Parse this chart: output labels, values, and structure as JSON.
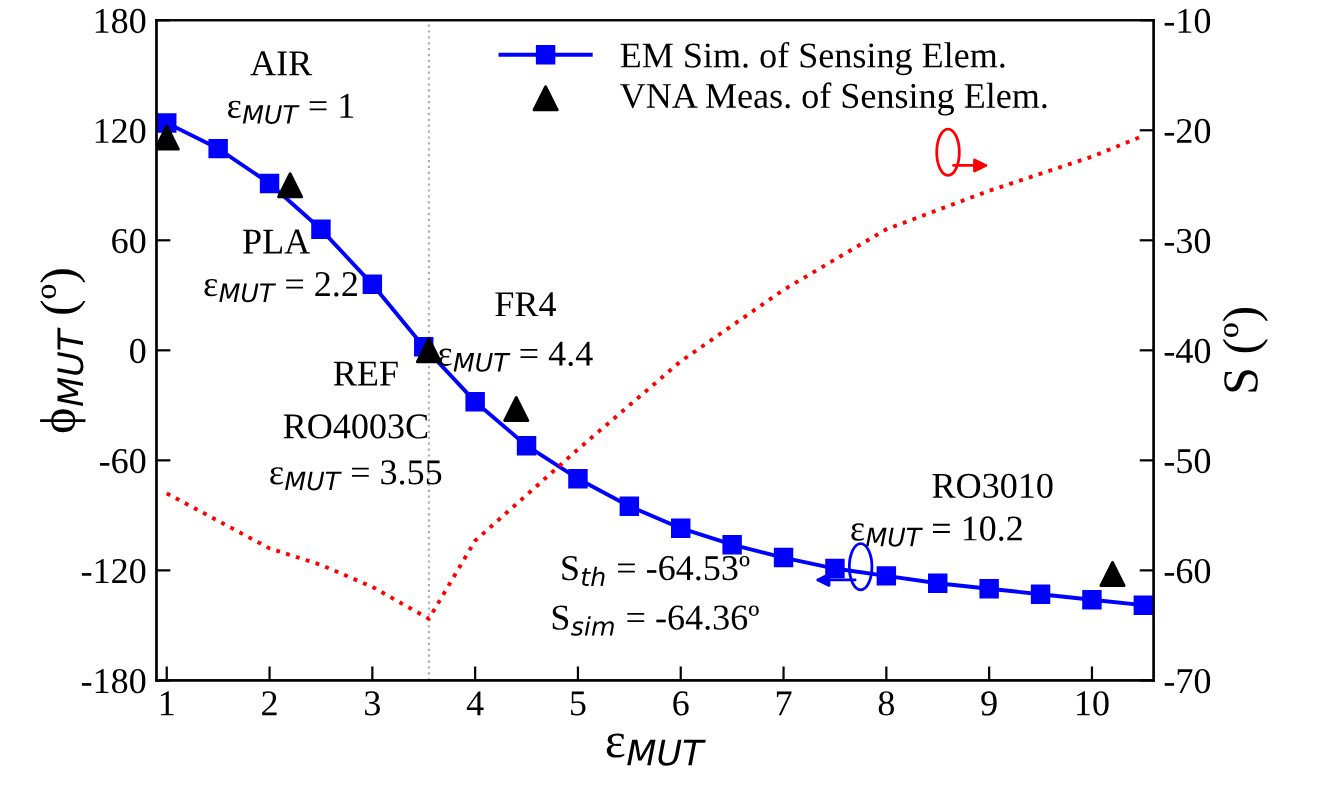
{
  "chart_data": {
    "type": "line",
    "xlabel": "ε$_{MUT}$",
    "ylabel": "ϕ$_{MUT}$ (º)",
    "y2label": "S (º)",
    "xlim": [
      0.9,
      10.6
    ],
    "xticks": [
      1,
      2,
      3,
      4,
      5,
      6,
      7,
      8,
      9,
      10
    ],
    "ylim": [
      -180,
      180
    ],
    "yticks": [
      -180,
      -120,
      -60,
      0,
      60,
      120,
      180
    ],
    "y2lim": [
      -70,
      -10
    ],
    "y2ticks": [
      -70,
      -60,
      -50,
      -40,
      -30,
      -20,
      -10
    ],
    "legend": "top",
    "grid": false,
    "series": [
      {
        "name": "EM Sim. of Sensing Elem.",
        "type": "line",
        "marker": "square",
        "line_style": "solid",
        "color": "#0000ff",
        "x": [
          1,
          1.5,
          2,
          2.5,
          3,
          3.5,
          4,
          4.5,
          5,
          5.5,
          6,
          6.5,
          7,
          7.5,
          8,
          8.5,
          9,
          9.5,
          10,
          10.5
        ],
        "values": [
          124,
          110,
          91,
          66,
          36,
          2,
          -28,
          -52,
          -70,
          -85,
          -97,
          -106,
          -113,
          -119,
          -123,
          -127,
          -130,
          -133,
          -136,
          -139
        ]
      },
      {
        "name": "VNA Meas. of Sensing Elem.",
        "type": "scatter",
        "marker": "triangle",
        "color": "#000000",
        "x": [
          1,
          2.2,
          3.55,
          4.4,
          10.2
        ],
        "values": [
          116,
          90,
          0,
          -32,
          -122
        ]
      },
      {
        "type": "line",
        "axis": "y2",
        "marker": "none",
        "line_style": "dotted",
        "color": "#ff0000",
        "x": [
          1,
          1.5,
          2,
          2.5,
          3,
          3.55,
          4,
          5,
          6,
          7,
          8,
          9,
          10,
          10.5
        ],
        "values": [
          -53,
          -55.5,
          -58,
          -59.5,
          -61.5,
          -64.4,
          -57.3,
          -49,
          -41,
          -34.5,
          -29,
          -25.5,
          -22.4,
          -20.5
        ]
      }
    ],
    "ref_lines": [
      {
        "axis": "x",
        "value": 3.55,
        "color": "#b0b0b0",
        "line_style": "dotted"
      }
    ],
    "annotations": [
      "AIR",
      "ε$_{MUT}$ = 1",
      "PLA",
      "ε$_{MUT}$ = 2.2",
      "REF",
      "FR4",
      "ε$_{MUT}$ = 4.4",
      "RO4003C",
      "ε$_{MUT}$ = 3.55",
      "RO3010",
      "ε$_{MUT}$ = 10.2",
      "S$_{th}$ = -64.53º",
      "S$_{sim}$ = -64.36º"
    ]
  }
}
